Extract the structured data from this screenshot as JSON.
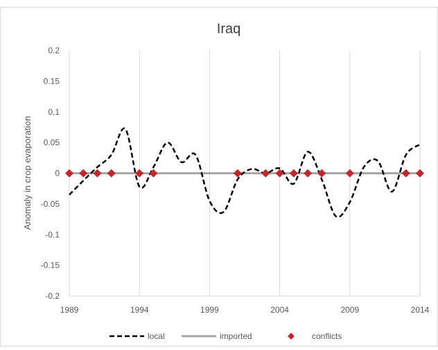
{
  "chart_data": {
    "type": "line",
    "title": "Iraq",
    "xlabel": "",
    "ylabel": "Anomaly in crop evaporation",
    "xlim": [
      1989,
      2014
    ],
    "ylim": [
      -0.2,
      0.2
    ],
    "x_ticks": [
      "1989",
      "1994",
      "1999",
      "2004",
      "2009",
      "2014"
    ],
    "y_ticks": [
      "0.2",
      "0.15",
      "0.1",
      "0.05",
      "0",
      "-0.05",
      "-0.1",
      "-0.15",
      "-0.2"
    ],
    "grid": "vertical",
    "legend_position": "bottom",
    "series": [
      {
        "name": "local",
        "style": "dashed",
        "color": "#000000",
        "x": [
          1989,
          1990,
          1991,
          1992,
          1993,
          1994,
          1995,
          1996,
          1997,
          1998,
          1999,
          2000,
          2001,
          2002,
          2003,
          2004,
          2005,
          2006,
          2007,
          2008,
          2009,
          2010,
          2011,
          2012,
          2013,
          2014
        ],
        "y": [
          -0.035,
          -0.012,
          0.01,
          0.03,
          0.072,
          -0.022,
          0.01,
          0.05,
          0.018,
          0.03,
          -0.045,
          -0.063,
          -0.01,
          0.007,
          0.0,
          0.008,
          -0.017,
          0.035,
          -0.01,
          -0.07,
          -0.047,
          0.01,
          0.02,
          -0.03,
          0.03,
          0.047
        ]
      },
      {
        "name": "imported",
        "style": "solid",
        "color": "#a6a6a6",
        "x": [
          1989,
          2014
        ],
        "y": [
          0,
          0
        ]
      },
      {
        "name": "conflicts",
        "style": "marker",
        "color": "#c0282d",
        "x": [
          1989,
          1990,
          1991,
          1992,
          1994,
          1995,
          2001,
          2003,
          2004,
          2005,
          2006,
          2007,
          2009,
          2013,
          2014
        ],
        "y": [
          0,
          0,
          0,
          0,
          0,
          0,
          0,
          0,
          0,
          0,
          0,
          0,
          0,
          0,
          0
        ]
      }
    ]
  }
}
